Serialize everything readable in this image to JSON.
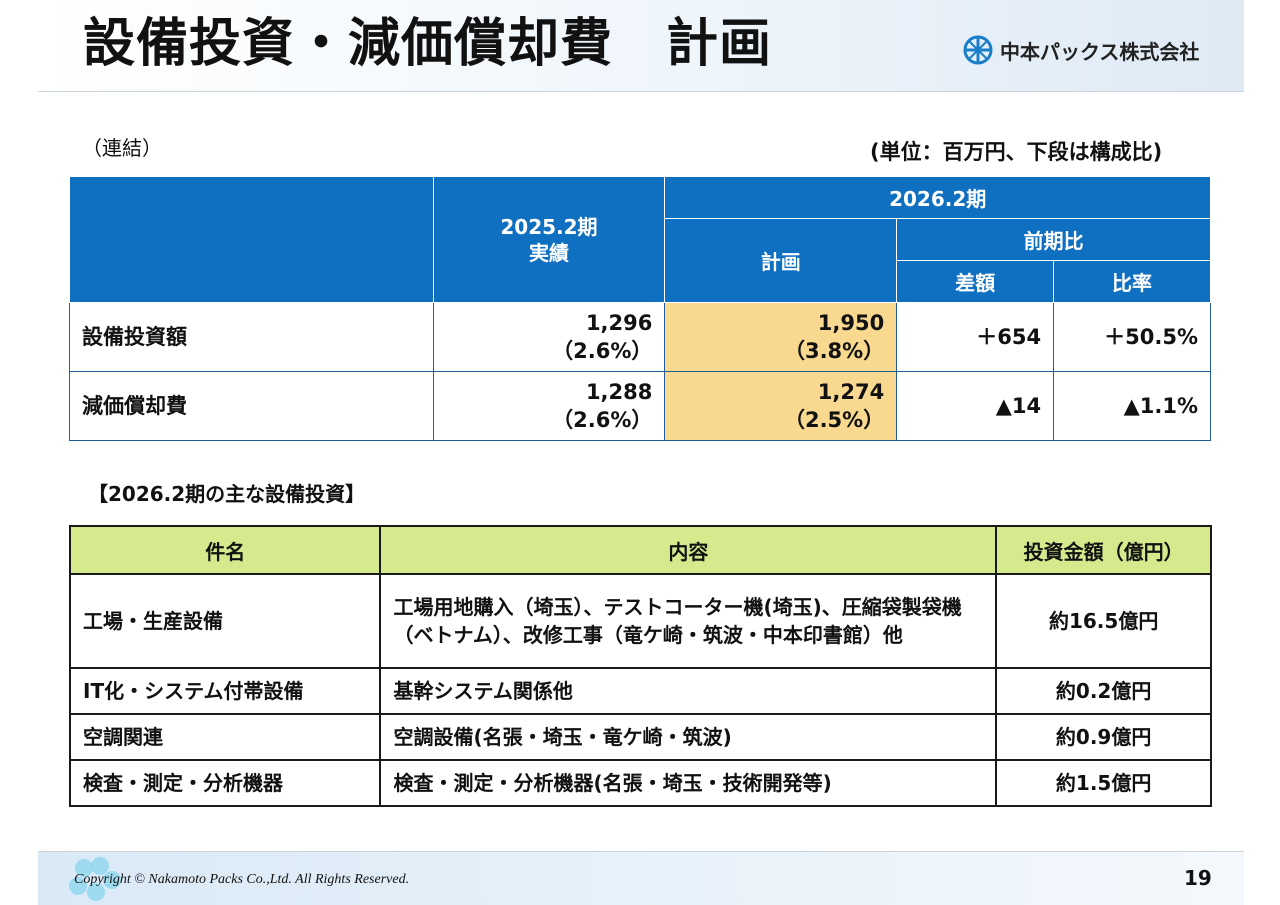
{
  "title": "設備投資・減価償却費　計画",
  "logo": {
    "company_name": "中本パックス株式会社",
    "icon": "wheel-logo-icon"
  },
  "scope_note": "（連結）",
  "unit_note": "(単位：百万円、下段は構成比)",
  "summary_table": {
    "headers": {
      "prev_period": "2025.2期",
      "prev_sub": "実績",
      "curr_period": "2026.2期",
      "plan": "計画",
      "yoy": "前期比",
      "diff": "差額",
      "ratio": "比率"
    },
    "rows": [
      {
        "label": "設備投資額",
        "prev_value": "1,296",
        "prev_share": "（2.6%）",
        "plan_value": "1,950",
        "plan_share": "（3.8%）",
        "diff": "＋654",
        "ratio": "＋50.5%"
      },
      {
        "label": "減価償却費",
        "prev_value": "1,288",
        "prev_share": "（2.6%）",
        "plan_value": "1,274",
        "plan_share": "（2.5%）",
        "diff": "▲14",
        "ratio": "▲1.1%"
      }
    ]
  },
  "section_label": "【2026.2期の主な設備投資】",
  "investment_table": {
    "headers": {
      "item": "件名",
      "content": "内容",
      "amount": "投資金額（億円）"
    },
    "rows": [
      {
        "item": "工場・生産設備",
        "content": "工場用地購入（埼玉）、テストコーター機(埼玉)、圧縮袋製袋機（ベトナム）、改修工事（竜ケ崎・筑波・中本印書館）他",
        "amount": "約16.5億円"
      },
      {
        "item": "IT化・システム付帯設備",
        "content": "基幹システム関係他",
        "amount": "約0.2億円"
      },
      {
        "item": "空調関連",
        "content": "空調設備(名張・埼玉・竜ケ崎・筑波)",
        "amount": "約0.9億円"
      },
      {
        "item": "検査・測定・分析機器",
        "content": "検査・測定・分析機器(名張・埼玉・技術開発等)",
        "amount": "約1.5億円"
      }
    ]
  },
  "footer": {
    "copyright": "Copyright © Nakamoto Packs Co.,Ltd. All Rights Reserved.",
    "page_number": "19"
  },
  "colors": {
    "header_blue": "#0f6fc0",
    "plan_highlight": "#f8d98f",
    "green_header": "#d4ea8c"
  }
}
